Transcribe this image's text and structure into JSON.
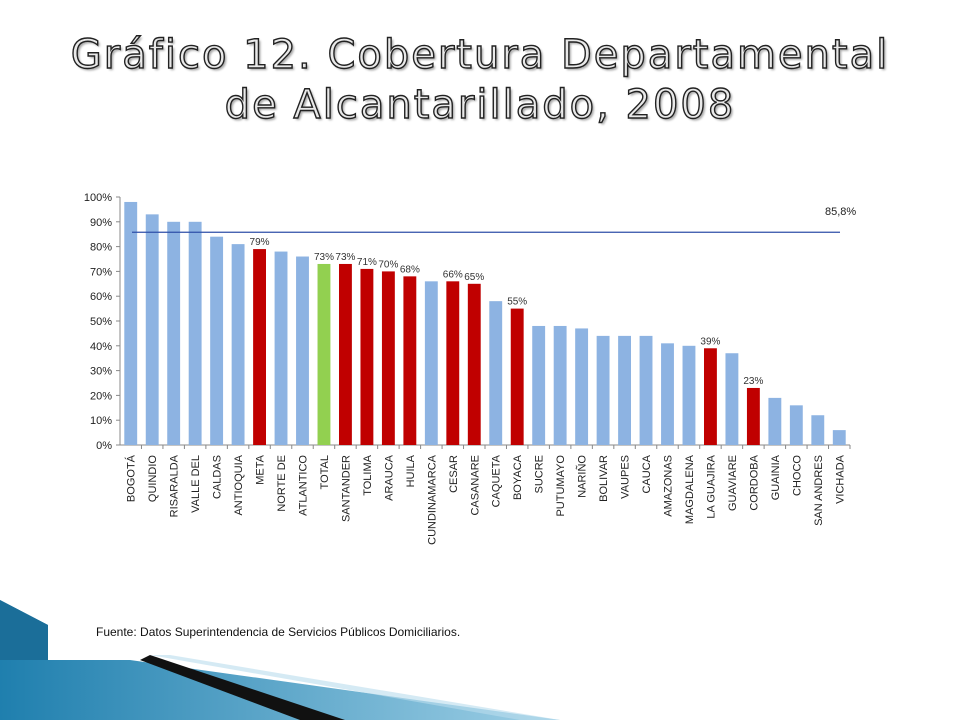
{
  "slide": {
    "title": "Gráfico 12. Cobertura Departamental de Alcantarillado, 2008",
    "source": "Fuente: Datos Superintendencia de Servicios Públicos Domiciliarios."
  },
  "colors": {
    "default": "#8db3e2",
    "highlight": "#c00000",
    "total": "#92d050",
    "reference_line": "#2f4fa8"
  },
  "chart_data": {
    "type": "bar",
    "ylim": [
      0,
      100
    ],
    "yticks": [
      0,
      10,
      20,
      30,
      40,
      50,
      60,
      70,
      80,
      90,
      100
    ],
    "ytick_labels": [
      "0%",
      "10%",
      "20%",
      "30%",
      "40%",
      "50%",
      "60%",
      "70%",
      "80%",
      "90%",
      "100%"
    ],
    "categories": [
      "BOGOTÁ",
      "QUINDIO",
      "RISARALDA",
      "VALLE DEL",
      "CALDAS",
      "ANTIOQUIA",
      "META",
      "NORTE DE",
      "ATLANTICO",
      "TOTAL",
      "SANTANDER",
      "TOLIMA",
      "ARAUCA",
      "HUILA",
      "CUNDINAMARCA",
      "CESAR",
      "CASANARE",
      "CAQUETA",
      "BOYACA",
      "SUCRE",
      "PUTUMAYO",
      "NARIÑO",
      "BOLIVAR",
      "VAUPES",
      "CAUCA",
      "AMAZONAS",
      "MAGDALENA",
      "LA GUAJIRA",
      "GUAVIARE",
      "CORDOBA",
      "GUAINIA",
      "CHOCO",
      "SAN ANDRES",
      "VICHADA"
    ],
    "values": [
      98,
      93,
      90,
      90,
      84,
      81,
      79,
      78,
      76,
      73,
      73,
      71,
      70,
      68,
      66,
      66,
      65,
      58,
      55,
      48,
      48,
      47,
      44,
      44,
      44,
      41,
      40,
      39,
      37,
      23,
      19,
      16,
      12,
      6
    ],
    "bar_colors": [
      "default",
      "default",
      "default",
      "default",
      "default",
      "default",
      "highlight",
      "default",
      "default",
      "total",
      "highlight",
      "highlight",
      "highlight",
      "highlight",
      "default",
      "highlight",
      "highlight",
      "default",
      "highlight",
      "default",
      "default",
      "default",
      "default",
      "default",
      "default",
      "default",
      "default",
      "highlight",
      "default",
      "highlight",
      "default",
      "default",
      "default",
      "default"
    ],
    "data_labels": [
      null,
      null,
      null,
      null,
      null,
      null,
      "79%",
      null,
      null,
      "73%",
      "73%",
      "71%",
      "70%",
      "68%",
      null,
      "66%",
      "65%",
      null,
      "55%",
      null,
      null,
      null,
      null,
      null,
      null,
      null,
      null,
      "39%",
      null,
      "23%",
      null,
      null,
      null,
      null
    ],
    "reference_line": {
      "value": 85.8,
      "label": "85,8%"
    },
    "grid": false,
    "legend": "none"
  }
}
